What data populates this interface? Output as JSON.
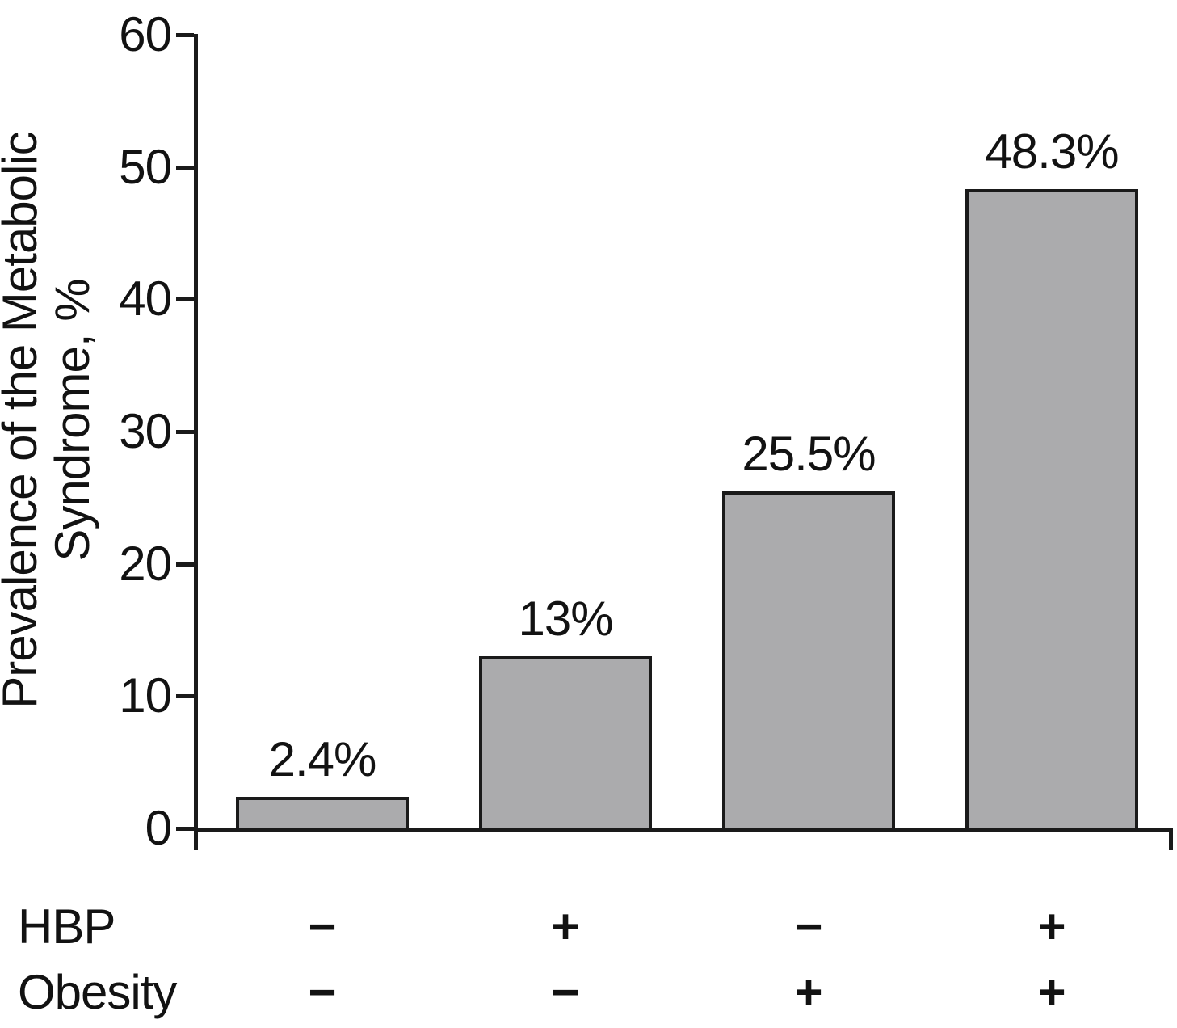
{
  "chart_data": {
    "type": "bar",
    "title": "",
    "xlabel": "",
    "ylabel": "Prevalence of the Metabolic Syndrome, %",
    "ylabel_lines": [
      "Prevalence of the Metabolic",
      "Syndrome, %"
    ],
    "ylim": [
      0,
      60
    ],
    "yticks": [
      0,
      10,
      20,
      30,
      40,
      50,
      60
    ],
    "grid": false,
    "legend": false,
    "values": [
      2.4,
      13,
      25.5,
      48.3
    ],
    "bar_value_labels": [
      "2.4%",
      "13%",
      "25.5%",
      "48.3%"
    ],
    "categories": [
      {
        "hbp": "−",
        "obesity": "−"
      },
      {
        "hbp": "+",
        "obesity": "−"
      },
      {
        "hbp": "−",
        "obesity": "+"
      },
      {
        "hbp": "+",
        "obesity": "+"
      }
    ],
    "x_annotation_rows": [
      {
        "label": "HBP",
        "signs": [
          "−",
          "+",
          "−",
          "+"
        ]
      },
      {
        "label": "Obesity",
        "signs": [
          "−",
          "−",
          "+",
          "+"
        ]
      }
    ],
    "bar_fill_color": "#ababad",
    "bar_border_color": "#1a1a1a",
    "axis_color": "#1a1a1a",
    "text_color": "#121212"
  }
}
